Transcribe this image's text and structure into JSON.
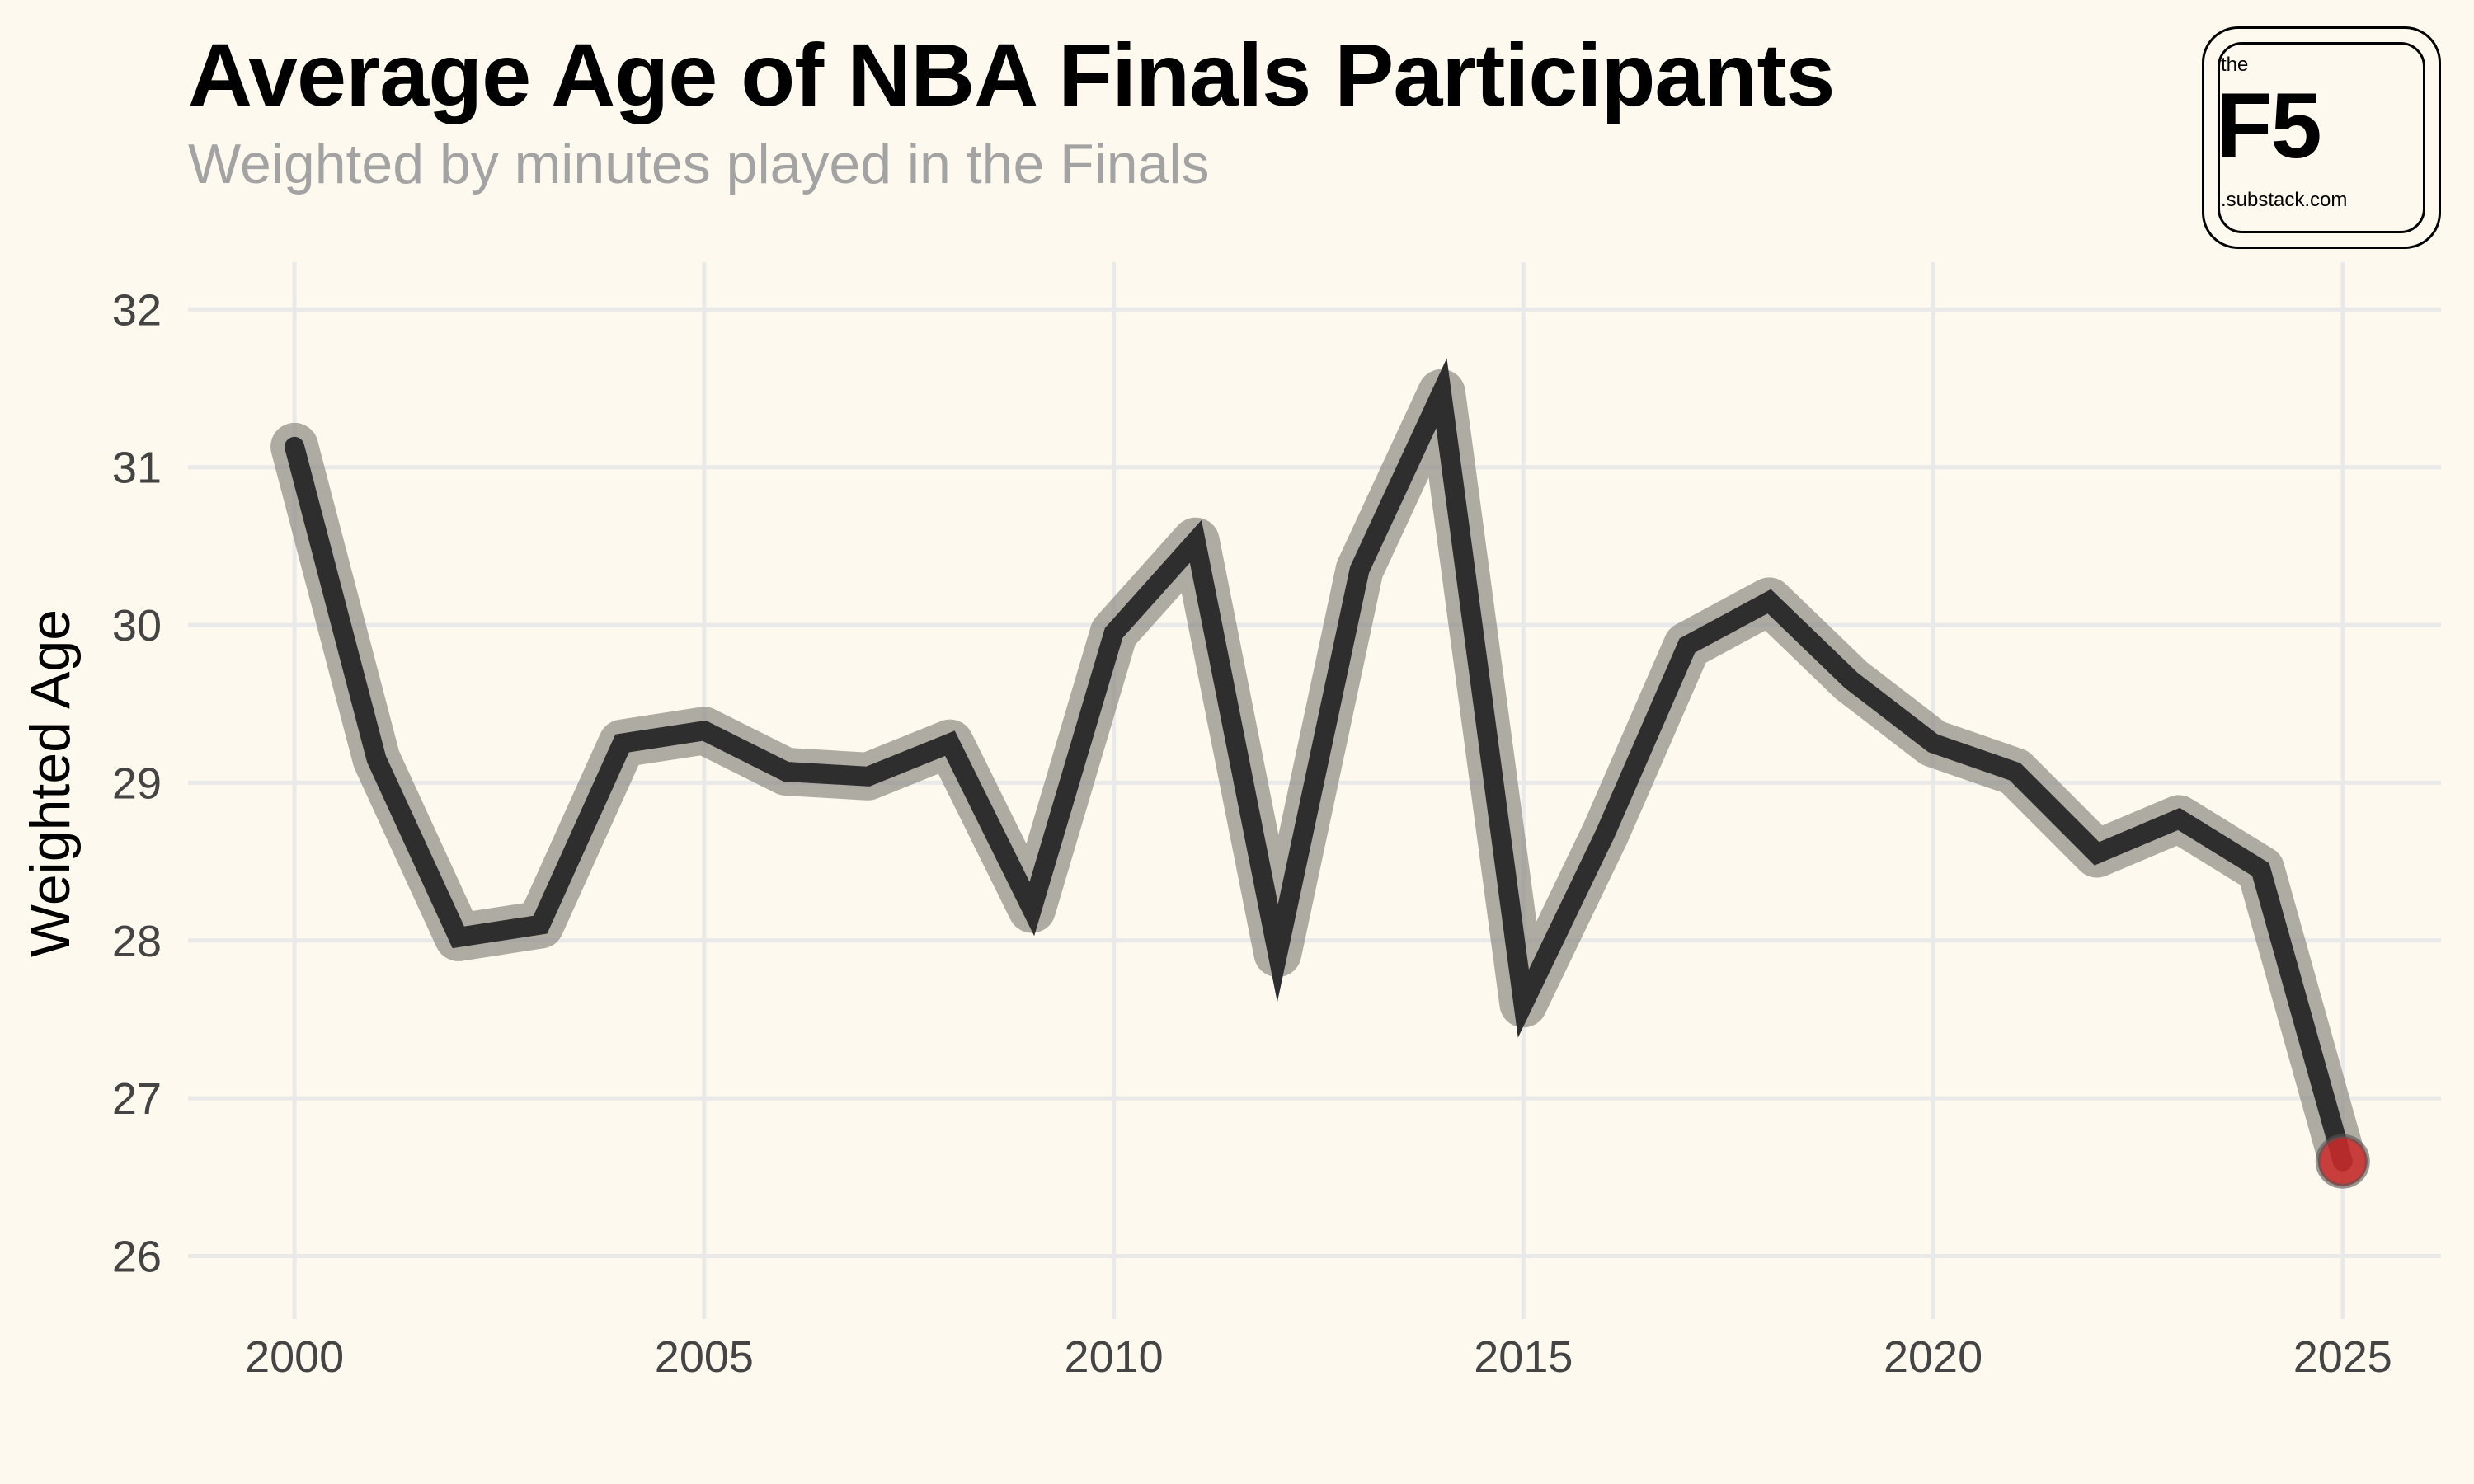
{
  "header": {
    "title": "Average Age of NBA Finals Participants",
    "subtitle": "Weighted by minutes played in the Finals"
  },
  "logo": {
    "the": "the",
    "f5": "F5",
    "domain": ".substack.com"
  },
  "colors": {
    "background": "#fdf9ee",
    "line": "#2e2e2e",
    "halo": "#8f8c86",
    "highlight": "#cc2a2a",
    "grid": "#e9e9e9"
  },
  "chart_data": {
    "type": "line",
    "title": "Average Age of NBA Finals Participants",
    "subtitle": "Weighted by minutes played in the Finals",
    "xlabel": "",
    "ylabel": "Weighted Age",
    "xlim": [
      1998.7,
      2026.2
    ],
    "ylim": [
      25.6,
      32.3
    ],
    "xticks": [
      2000,
      2005,
      2010,
      2015,
      2020,
      2025
    ],
    "yticks": [
      26,
      27,
      28,
      29,
      30,
      31,
      32
    ],
    "grid": true,
    "legend": "none",
    "x": [
      2000,
      2001,
      2002,
      2003,
      2004,
      2005,
      2006,
      2007,
      2008,
      2009,
      2010,
      2011,
      2012,
      2013,
      2014,
      2015,
      2016,
      2017,
      2018,
      2019,
      2020,
      2021,
      2022,
      2023,
      2024,
      2025
    ],
    "series": [
      {
        "values": [
          31.13,
          29.15,
          28.02,
          28.1,
          29.25,
          29.33,
          29.07,
          29.04,
          29.25,
          28.2,
          29.95,
          30.53,
          27.92,
          30.35,
          31.47,
          27.6,
          28.68,
          29.87,
          30.15,
          29.65,
          29.25,
          29.07,
          28.55,
          28.77,
          28.45,
          26.6
        ]
      }
    ],
    "highlight": {
      "x": 2025,
      "y": 26.6
    }
  }
}
